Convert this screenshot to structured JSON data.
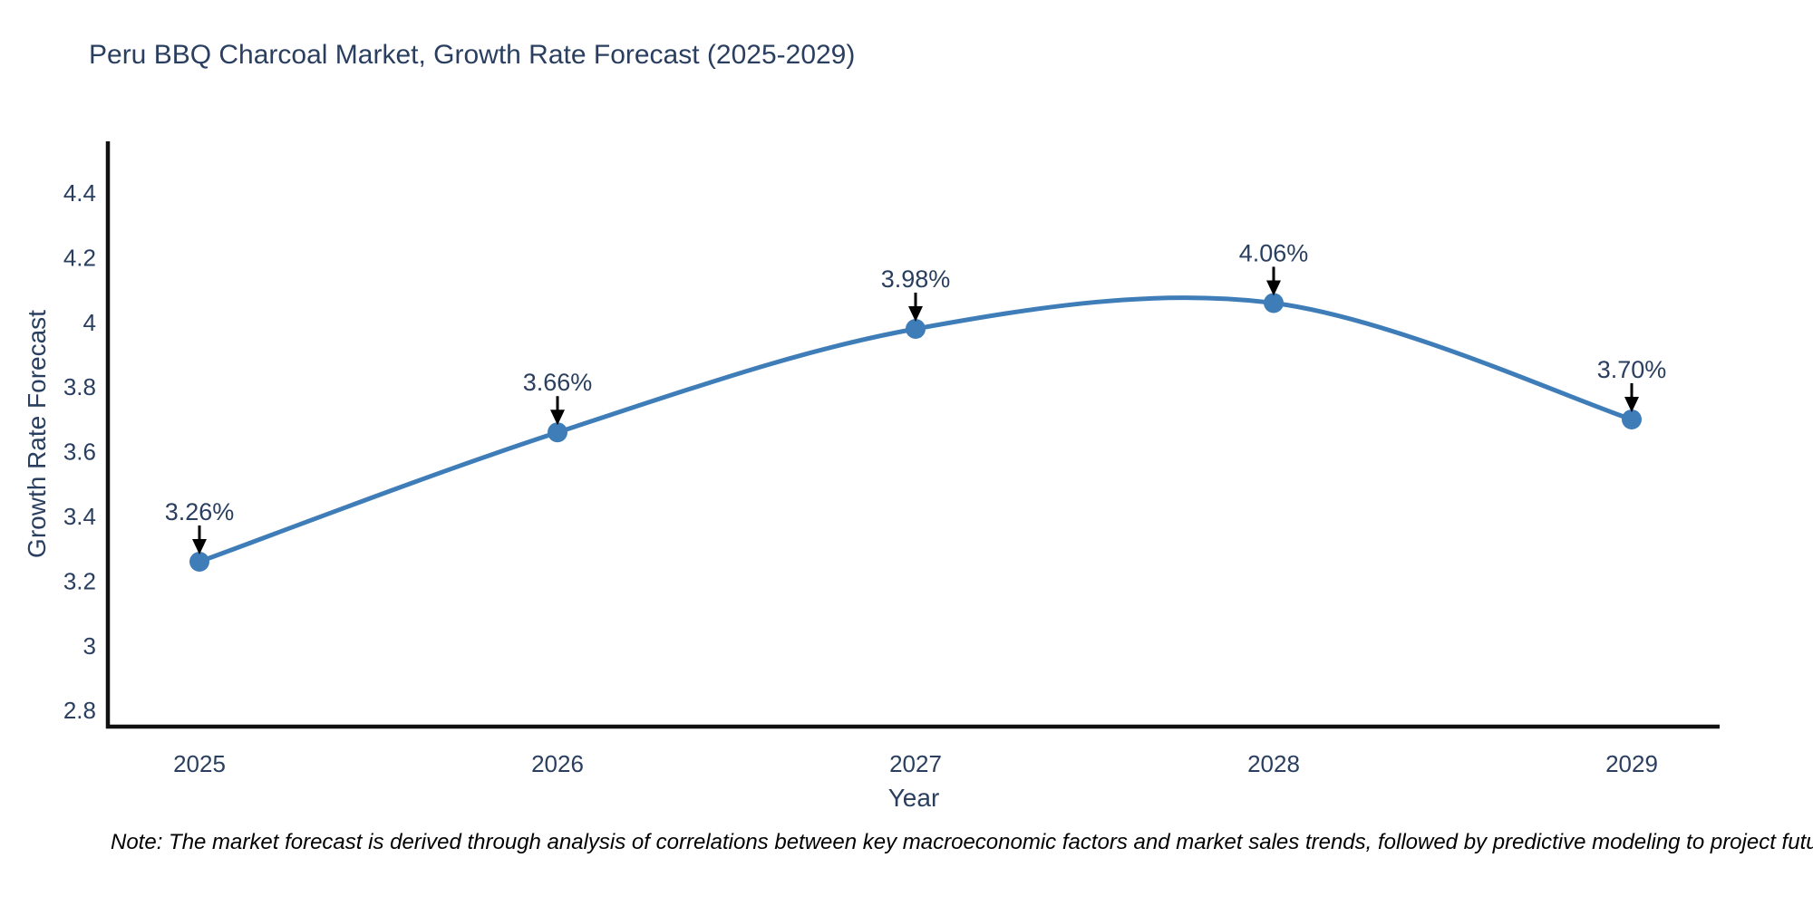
{
  "chart": {
    "title": "Peru BBQ Charcoal Market, Growth Rate Forecast (2025-2029)",
    "note": "Note: The market forecast is derived through analysis of correlations between key macroeconomic factors and market sales trends, followed by predictive modeling to project future sales"
  },
  "chart_data": {
    "type": "line",
    "title": "Peru BBQ Charcoal Market, Growth Rate Forecast (2025-2029)",
    "xlabel": "Year",
    "ylabel": "Growth Rate Forecast",
    "x": [
      2025,
      2026,
      2027,
      2028,
      2029
    ],
    "series": [
      {
        "name": "Growth Rate Forecast",
        "values": [
          3.26,
          3.66,
          3.98,
          4.06,
          3.7
        ]
      }
    ],
    "point_labels": [
      "3.26%",
      "3.66%",
      "3.98%",
      "4.06%",
      "3.70%"
    ],
    "x_tick_labels": [
      "2025",
      "2026",
      "2027",
      "2028",
      "2029"
    ],
    "y_ticks": [
      2.8,
      3,
      3.2,
      3.4,
      3.6,
      3.8,
      4,
      4.2,
      4.4
    ],
    "y_tick_labels": [
      "2.8",
      "3",
      "3.2",
      "3.4",
      "3.6",
      "3.8",
      "4",
      "4.2",
      "4.4"
    ],
    "ylim": [
      2.75,
      4.56
    ],
    "line_shape": "spline",
    "grid": false,
    "legend": "none",
    "colors": {
      "line": "#3f7db8",
      "marker": "#3f7db8",
      "axis": "#111111",
      "text": "#2a3f5f",
      "annotation_text": "#2a3f5f",
      "annotation_arrow": "#000000",
      "note_text": "#000000",
      "background": "#ffffff"
    }
  }
}
